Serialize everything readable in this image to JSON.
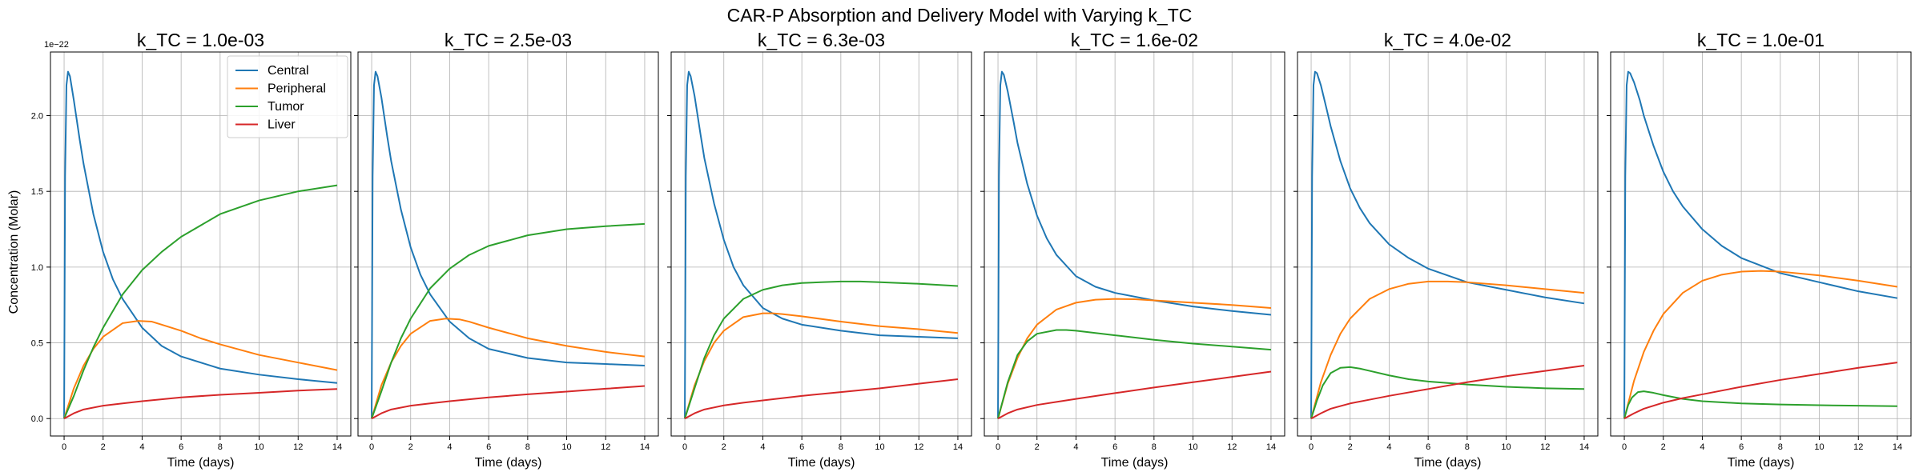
{
  "figure": {
    "suptitle": "CAR-P Absorption and Delivery Model with Varying k_TC",
    "ylabel": "Concentration (Molar)",
    "y_offset_label": "1e−22"
  },
  "colors": {
    "Central": "#1f77b4",
    "Peripheral": "#ff7f0e",
    "Tumor": "#2ca02c",
    "Liver": "#d62728",
    "grid": "#b0b0b0",
    "axes": "#000000"
  },
  "chart_data": [
    {
      "type": "line",
      "title": "k_TC = 1.0e-03",
      "xlabel": "Time (days)",
      "ylabel": "Concentration (Molar)",
      "xlim": [
        -0.7,
        14.7
      ],
      "ylim": [
        -0.115,
        2.42
      ],
      "y_scale_exponent": -22,
      "xticks": [
        0,
        2,
        4,
        6,
        8,
        10,
        12,
        14
      ],
      "yticks": [
        0.0,
        0.5,
        1.0,
        1.5,
        2.0
      ],
      "grid": true,
      "legend": "top-right",
      "series": [
        {
          "name": "Central",
          "x": [
            0,
            0.05,
            0.12,
            0.2,
            0.3,
            0.5,
            0.8,
            1.0,
            1.5,
            2,
            2.5,
            3,
            4,
            5,
            6,
            8,
            10,
            12,
            14
          ],
          "y": [
            0,
            1.6,
            2.2,
            2.29,
            2.26,
            2.1,
            1.84,
            1.68,
            1.35,
            1.1,
            0.92,
            0.79,
            0.6,
            0.48,
            0.41,
            0.33,
            0.29,
            0.26,
            0.235
          ]
        },
        {
          "name": "Peripheral",
          "x": [
            0,
            0.5,
            1,
            1.5,
            2,
            3,
            3.8,
            4.5,
            5,
            6,
            7,
            8,
            10,
            12,
            14
          ],
          "y": [
            0,
            0.2,
            0.35,
            0.46,
            0.54,
            0.63,
            0.645,
            0.64,
            0.62,
            0.58,
            0.53,
            0.49,
            0.42,
            0.37,
            0.32
          ]
        },
        {
          "name": "Tumor",
          "x": [
            0,
            0.5,
            1,
            1.5,
            2,
            3,
            4,
            5,
            6,
            8,
            10,
            12,
            14
          ],
          "y": [
            0,
            0.15,
            0.32,
            0.47,
            0.6,
            0.82,
            0.98,
            1.1,
            1.2,
            1.35,
            1.44,
            1.5,
            1.54
          ]
        },
        {
          "name": "Liver",
          "x": [
            0,
            0.5,
            1,
            2,
            3,
            4,
            6,
            8,
            10,
            12,
            14
          ],
          "y": [
            0,
            0.035,
            0.06,
            0.085,
            0.1,
            0.115,
            0.14,
            0.157,
            0.17,
            0.185,
            0.195
          ]
        }
      ]
    },
    {
      "type": "line",
      "title": "k_TC = 2.5e-03",
      "xlabel": "Time (days)",
      "xlim": [
        -0.7,
        14.7
      ],
      "ylim": [
        -0.115,
        2.42
      ],
      "xticks": [
        0,
        2,
        4,
        6,
        8,
        10,
        12,
        14
      ],
      "yticks": [
        0.0,
        0.5,
        1.0,
        1.5,
        2.0
      ],
      "grid": true,
      "series": [
        {
          "name": "Central",
          "x": [
            0,
            0.05,
            0.12,
            0.2,
            0.3,
            0.5,
            0.8,
            1.0,
            1.5,
            2,
            2.5,
            3,
            4,
            5,
            6,
            8,
            10,
            12,
            14
          ],
          "y": [
            0,
            1.6,
            2.2,
            2.29,
            2.26,
            2.12,
            1.86,
            1.7,
            1.38,
            1.13,
            0.95,
            0.82,
            0.64,
            0.53,
            0.46,
            0.4,
            0.37,
            0.36,
            0.35
          ]
        },
        {
          "name": "Peripheral",
          "x": [
            0,
            0.5,
            1,
            1.5,
            2,
            3,
            3.8,
            4.5,
            5,
            6,
            8,
            10,
            12,
            14
          ],
          "y": [
            0,
            0.22,
            0.37,
            0.48,
            0.56,
            0.645,
            0.66,
            0.655,
            0.64,
            0.6,
            0.53,
            0.48,
            0.44,
            0.41
          ]
        },
        {
          "name": "Tumor",
          "x": [
            0,
            0.5,
            1,
            1.5,
            2,
            3,
            4,
            5,
            6,
            8,
            10,
            12,
            14
          ],
          "y": [
            0,
            0.18,
            0.37,
            0.53,
            0.66,
            0.86,
            0.99,
            1.08,
            1.14,
            1.21,
            1.25,
            1.27,
            1.285
          ]
        },
        {
          "name": "Liver",
          "x": [
            0,
            0.5,
            1,
            2,
            3,
            4,
            6,
            8,
            10,
            12,
            14
          ],
          "y": [
            0,
            0.035,
            0.06,
            0.085,
            0.1,
            0.115,
            0.14,
            0.16,
            0.178,
            0.197,
            0.215
          ]
        }
      ]
    },
    {
      "type": "line",
      "title": "k_TC = 6.3e-03",
      "xlabel": "Time (days)",
      "xlim": [
        -0.7,
        14.7
      ],
      "ylim": [
        -0.115,
        2.42
      ],
      "xticks": [
        0,
        2,
        4,
        6,
        8,
        10,
        12,
        14
      ],
      "yticks": [
        0.0,
        0.5,
        1.0,
        1.5,
        2.0
      ],
      "grid": true,
      "series": [
        {
          "name": "Central",
          "x": [
            0,
            0.05,
            0.12,
            0.2,
            0.3,
            0.5,
            0.8,
            1.0,
            1.5,
            2,
            2.5,
            3,
            4,
            5,
            6,
            8,
            10,
            12,
            14
          ],
          "y": [
            0,
            1.6,
            2.2,
            2.29,
            2.26,
            2.13,
            1.88,
            1.72,
            1.42,
            1.18,
            1.0,
            0.88,
            0.73,
            0.66,
            0.62,
            0.58,
            0.55,
            0.54,
            0.53
          ]
        },
        {
          "name": "Peripheral",
          "x": [
            0,
            0.5,
            1,
            1.5,
            2,
            3,
            4,
            4.5,
            5,
            6,
            8,
            10,
            12,
            14
          ],
          "y": [
            0,
            0.22,
            0.38,
            0.5,
            0.58,
            0.67,
            0.695,
            0.695,
            0.69,
            0.675,
            0.64,
            0.61,
            0.59,
            0.565
          ]
        },
        {
          "name": "Tumor",
          "x": [
            0,
            0.5,
            1,
            1.5,
            2,
            3,
            4,
            5,
            6,
            7,
            8,
            9,
            10,
            12,
            14
          ],
          "y": [
            0,
            0.2,
            0.4,
            0.55,
            0.66,
            0.79,
            0.85,
            0.88,
            0.895,
            0.9,
            0.905,
            0.905,
            0.9,
            0.89,
            0.875
          ]
        },
        {
          "name": "Liver",
          "x": [
            0,
            0.5,
            1,
            2,
            3,
            4,
            6,
            8,
            10,
            12,
            14
          ],
          "y": [
            0,
            0.035,
            0.06,
            0.087,
            0.105,
            0.12,
            0.15,
            0.175,
            0.2,
            0.23,
            0.26
          ]
        }
      ]
    },
    {
      "type": "line",
      "title": "k_TC = 1.6e-02",
      "xlabel": "Time (days)",
      "xlim": [
        -0.7,
        14.7
      ],
      "ylim": [
        -0.115,
        2.42
      ],
      "xticks": [
        0,
        2,
        4,
        6,
        8,
        10,
        12,
        14
      ],
      "yticks": [
        0.0,
        0.5,
        1.0,
        1.5,
        2.0
      ],
      "grid": true,
      "series": [
        {
          "name": "Central",
          "x": [
            0,
            0.05,
            0.12,
            0.2,
            0.3,
            0.5,
            0.8,
            1.0,
            1.5,
            2,
            2.5,
            3,
            4,
            5,
            6,
            8,
            10,
            12,
            14
          ],
          "y": [
            0,
            1.6,
            2.2,
            2.29,
            2.27,
            2.16,
            1.96,
            1.82,
            1.55,
            1.34,
            1.19,
            1.08,
            0.94,
            0.87,
            0.83,
            0.78,
            0.74,
            0.71,
            0.685
          ]
        },
        {
          "name": "Peripheral",
          "x": [
            0,
            0.5,
            1,
            1.5,
            2,
            3,
            4,
            5,
            6,
            7,
            8,
            10,
            12,
            14
          ],
          "y": [
            0,
            0.23,
            0.4,
            0.53,
            0.62,
            0.72,
            0.765,
            0.785,
            0.79,
            0.788,
            0.78,
            0.765,
            0.75,
            0.73
          ]
        },
        {
          "name": "Tumor",
          "x": [
            0,
            0.5,
            1,
            1.5,
            2,
            3,
            3.5,
            4,
            5,
            6,
            8,
            10,
            12,
            14
          ],
          "y": [
            0,
            0.24,
            0.42,
            0.51,
            0.56,
            0.585,
            0.585,
            0.58,
            0.565,
            0.55,
            0.52,
            0.495,
            0.475,
            0.455
          ]
        },
        {
          "name": "Liver",
          "x": [
            0,
            0.5,
            1,
            2,
            3,
            4,
            6,
            8,
            10,
            12,
            14
          ],
          "y": [
            0,
            0.035,
            0.06,
            0.09,
            0.11,
            0.13,
            0.168,
            0.205,
            0.24,
            0.275,
            0.31
          ]
        }
      ]
    },
    {
      "type": "line",
      "title": "k_TC = 4.0e-02",
      "xlabel": "Time (days)",
      "xlim": [
        -0.7,
        14.7
      ],
      "ylim": [
        -0.115,
        2.42
      ],
      "xticks": [
        0,
        2,
        4,
        6,
        8,
        10,
        12,
        14
      ],
      "yticks": [
        0.0,
        0.5,
        1.0,
        1.5,
        2.0
      ],
      "grid": true,
      "series": [
        {
          "name": "Central",
          "x": [
            0,
            0.05,
            0.12,
            0.2,
            0.3,
            0.5,
            0.8,
            1.0,
            1.5,
            2,
            2.5,
            3,
            4,
            5,
            6,
            8,
            10,
            12,
            14
          ],
          "y": [
            0,
            1.6,
            2.2,
            2.29,
            2.28,
            2.2,
            2.04,
            1.93,
            1.7,
            1.52,
            1.39,
            1.29,
            1.15,
            1.06,
            0.99,
            0.9,
            0.85,
            0.8,
            0.76
          ]
        },
        {
          "name": "Peripheral",
          "x": [
            0,
            0.5,
            1,
            1.5,
            2,
            3,
            4,
            5,
            6,
            7,
            8,
            10,
            12,
            14
          ],
          "y": [
            0,
            0.24,
            0.42,
            0.56,
            0.66,
            0.79,
            0.855,
            0.89,
            0.905,
            0.905,
            0.9,
            0.88,
            0.855,
            0.83
          ]
        },
        {
          "name": "Tumor",
          "x": [
            0,
            0.3,
            0.6,
            1,
            1.5,
            2,
            2.5,
            3,
            4,
            5,
            6,
            8,
            10,
            12,
            14
          ],
          "y": [
            0,
            0.12,
            0.22,
            0.3,
            0.335,
            0.34,
            0.33,
            0.315,
            0.285,
            0.26,
            0.245,
            0.225,
            0.21,
            0.2,
            0.195
          ]
        },
        {
          "name": "Liver",
          "x": [
            0,
            0.5,
            1,
            2,
            3,
            4,
            6,
            8,
            10,
            12,
            14
          ],
          "y": [
            0,
            0.035,
            0.065,
            0.1,
            0.125,
            0.15,
            0.195,
            0.24,
            0.28,
            0.315,
            0.35
          ]
        }
      ]
    },
    {
      "type": "line",
      "title": "k_TC = 1.0e-01",
      "xlabel": "Time (days)",
      "xlim": [
        -0.7,
        14.7
      ],
      "ylim": [
        -0.115,
        2.42
      ],
      "xticks": [
        0,
        2,
        4,
        6,
        8,
        10,
        12,
        14
      ],
      "yticks": [
        0.0,
        0.5,
        1.0,
        1.5,
        2.0
      ],
      "grid": true,
      "series": [
        {
          "name": "Central",
          "x": [
            0,
            0.05,
            0.12,
            0.2,
            0.3,
            0.5,
            0.8,
            1.0,
            1.5,
            2,
            2.5,
            3,
            4,
            5,
            6,
            8,
            10,
            12,
            14
          ],
          "y": [
            0,
            1.6,
            2.2,
            2.29,
            2.28,
            2.22,
            2.1,
            2.0,
            1.8,
            1.63,
            1.5,
            1.4,
            1.25,
            1.14,
            1.06,
            0.96,
            0.9,
            0.84,
            0.795
          ]
        },
        {
          "name": "Peripheral",
          "x": [
            0,
            0.5,
            1,
            1.5,
            2,
            3,
            4,
            5,
            6,
            7,
            8,
            10,
            12,
            14
          ],
          "y": [
            0,
            0.25,
            0.44,
            0.58,
            0.69,
            0.83,
            0.91,
            0.95,
            0.97,
            0.975,
            0.97,
            0.945,
            0.91,
            0.87
          ]
        },
        {
          "name": "Tumor",
          "x": [
            0,
            0.2,
            0.4,
            0.7,
            1,
            1.5,
            2,
            3,
            4,
            6,
            8,
            10,
            12,
            14
          ],
          "y": [
            0,
            0.09,
            0.14,
            0.175,
            0.18,
            0.17,
            0.155,
            0.13,
            0.115,
            0.1,
            0.093,
            0.088,
            0.085,
            0.082
          ]
        },
        {
          "name": "Liver",
          "x": [
            0,
            0.5,
            1,
            2,
            3,
            4,
            6,
            8,
            10,
            12,
            14
          ],
          "y": [
            0,
            0.035,
            0.065,
            0.105,
            0.135,
            0.16,
            0.21,
            0.255,
            0.295,
            0.335,
            0.37
          ]
        }
      ]
    }
  ]
}
